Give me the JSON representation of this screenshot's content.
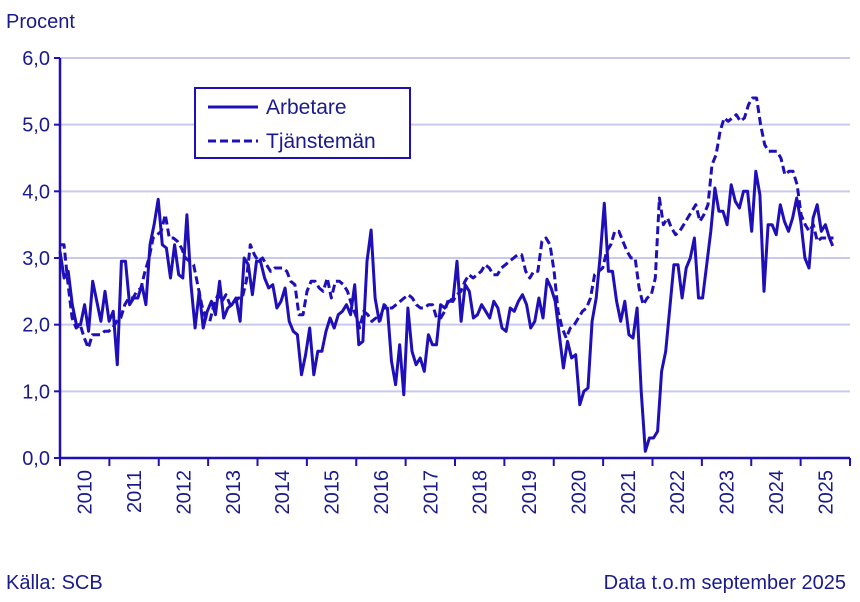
{
  "chart_data": {
    "type": "line",
    "ylabel": "Procent",
    "ylim": [
      0,
      6
    ],
    "yticks": [
      "0,0",
      "1,0",
      "2,0",
      "3,0",
      "4,0",
      "5,0",
      "6,0"
    ],
    "xlim": [
      2010,
      2026
    ],
    "xticks": [
      "2010",
      "2011",
      "2012",
      "2013",
      "2014",
      "2015",
      "2016",
      "2017",
      "2018",
      "2019",
      "2020",
      "2021",
      "2022",
      "2023",
      "2024",
      "2025"
    ],
    "grid": true,
    "legend_position": "top-left",
    "period": {
      "start": "2010-01",
      "end": "2025-09",
      "frequency": "monthly"
    },
    "series": [
      {
        "name": "Arbetare",
        "style": "solid",
        "values": [
          3.1,
          2.7,
          2.8,
          2.3,
          2.0,
          2.0,
          2.3,
          1.9,
          2.65,
          2.35,
          2.05,
          2.5,
          2.05,
          2.2,
          1.4,
          2.95,
          2.95,
          2.3,
          2.4,
          2.4,
          2.6,
          2.3,
          3.2,
          3.5,
          3.88,
          3.2,
          3.15,
          2.7,
          3.2,
          2.75,
          2.7,
          3.65,
          2.6,
          1.95,
          2.5,
          1.95,
          2.2,
          2.35,
          2.15,
          2.65,
          2.1,
          2.25,
          2.3,
          2.4,
          2.05,
          3.0,
          2.9,
          2.45,
          2.95,
          2.95,
          2.7,
          2.55,
          2.6,
          2.25,
          2.35,
          2.55,
          2.05,
          1.9,
          1.85,
          1.25,
          1.55,
          1.95,
          1.25,
          1.6,
          1.6,
          1.9,
          2.1,
          1.95,
          2.15,
          2.2,
          2.3,
          2.15,
          2.6,
          1.7,
          1.75,
          2.95,
          3.42,
          2.4,
          2.05,
          2.25,
          2.25,
          1.45,
          1.1,
          1.7,
          0.95,
          2.25,
          1.6,
          1.4,
          1.5,
          1.3,
          1.85,
          1.7,
          1.7,
          2.3,
          2.25,
          2.35,
          2.35,
          2.95,
          2.05,
          2.6,
          2.5,
          2.1,
          2.15,
          2.3,
          2.2,
          2.1,
          2.35,
          2.25,
          1.95,
          1.9,
          2.25,
          2.2,
          2.35,
          2.45,
          2.3,
          1.95,
          2.05,
          2.4,
          2.1,
          2.68,
          2.55,
          2.35,
          1.85,
          1.35,
          1.75,
          1.5,
          1.55,
          0.8,
          1.0,
          1.05,
          2.05,
          2.4,
          3.05,
          3.82,
          2.8,
          2.8,
          2.35,
          2.05,
          2.35,
          1.85,
          1.8,
          2.25,
          1.0,
          0.1,
          0.3,
          0.3,
          0.4,
          1.3,
          1.6,
          2.25,
          2.9,
          2.9,
          2.4,
          2.85,
          3.0,
          3.3,
          2.4,
          2.4,
          2.9,
          3.4,
          4.05,
          3.7,
          3.7,
          3.5,
          4.1,
          3.85,
          3.75,
          4.0,
          4.0,
          3.4,
          4.3,
          3.95,
          2.5,
          3.5,
          3.5,
          3.35,
          3.8,
          3.55,
          3.4,
          3.6,
          3.9,
          3.55,
          3.0,
          2.85,
          3.6,
          3.8,
          3.4,
          3.5,
          3.3,
          3.3
        ]
      },
      {
        "name": "Tjänstemän",
        "style": "dashed",
        "values": [
          3.2,
          3.2,
          2.6,
          2.1,
          1.95,
          2.0,
          1.8,
          1.65,
          1.85,
          1.85,
          1.85,
          1.9,
          1.9,
          1.95,
          2.05,
          2.1,
          2.3,
          2.4,
          2.4,
          2.5,
          2.55,
          2.8,
          3.0,
          3.3,
          3.35,
          3.4,
          3.65,
          3.3,
          3.3,
          3.25,
          3.15,
          3.0,
          2.95,
          2.9,
          2.6,
          2.3,
          2.1,
          2.05,
          2.3,
          2.45,
          2.35,
          2.45,
          2.3,
          2.3,
          2.4,
          2.4,
          2.65,
          3.2,
          3.05,
          2.95,
          3.0,
          2.9,
          2.8,
          2.85,
          2.85,
          2.85,
          2.8,
          2.65,
          2.6,
          2.15,
          2.15,
          2.5,
          2.65,
          2.65,
          2.55,
          2.5,
          2.7,
          2.4,
          2.65,
          2.65,
          2.6,
          2.5,
          2.3,
          2.15,
          1.95,
          2.2,
          2.15,
          2.05,
          2.1,
          2.05,
          2.3,
          2.25,
          2.25,
          2.3,
          2.35,
          2.4,
          2.45,
          2.4,
          2.3,
          2.25,
          2.25,
          2.3,
          2.3,
          2.1,
          2.1,
          2.2,
          2.4,
          2.35,
          2.45,
          2.5,
          2.65,
          2.75,
          2.7,
          2.75,
          2.8,
          2.9,
          2.85,
          2.75,
          2.75,
          2.85,
          2.9,
          2.95,
          3.0,
          3.05,
          3.05,
          2.8,
          2.7,
          2.8,
          2.8,
          3.25,
          3.3,
          3.2,
          2.8,
          2.2,
          1.95,
          1.8,
          1.95,
          2.0,
          2.1,
          2.2,
          2.25,
          2.4,
          2.75,
          2.8,
          2.85,
          3.1,
          3.2,
          3.4,
          3.4,
          3.25,
          3.1,
          3.0,
          3.0,
          2.55,
          2.3,
          2.4,
          2.45,
          2.7,
          3.9,
          3.5,
          3.6,
          3.45,
          3.35,
          3.4,
          3.5,
          3.6,
          3.7,
          3.8,
          3.55,
          3.65,
          3.8,
          4.4,
          4.55,
          4.9,
          5.1,
          5.05,
          5.1,
          5.15,
          5.05,
          5.1,
          5.3,
          5.4,
          5.4,
          5.0,
          4.7,
          4.6,
          4.6,
          4.6,
          4.5,
          4.25,
          4.3,
          4.3,
          4.1,
          3.65,
          3.5,
          3.4,
          3.5,
          3.25,
          3.3,
          3.3,
          3.3,
          3.15
        ]
      }
    ],
    "source": "Källa: SCB",
    "note": "Data t.o.m september 2025"
  },
  "colors": {
    "line": "#1f0fb8",
    "grid": "#c9c9ee",
    "text": "#1a1a8c"
  }
}
